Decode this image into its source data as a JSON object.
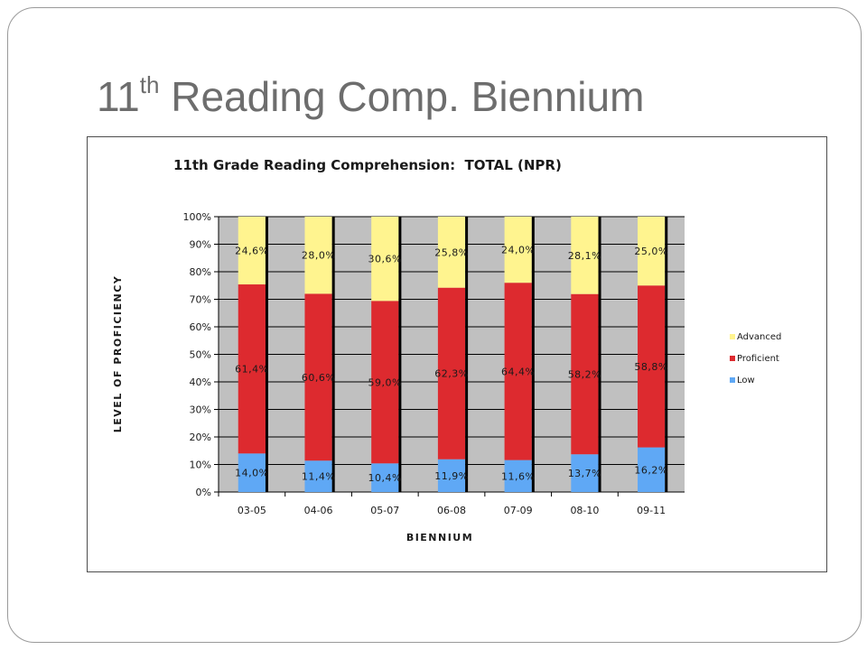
{
  "slide": {
    "title_main": "11",
    "title_sup": "th",
    "title_rest": " Reading Comp. Biennium"
  },
  "colors": {
    "plot_bg": "#c0c0c0",
    "Low": "#5fa8f5",
    "Proficient": "#dd2a2f",
    "Advanced": "#fff48f"
  },
  "chart_data": {
    "type": "bar",
    "stacked": true,
    "title": "11th Grade Reading Comprehension:  TOTAL (NPR)",
    "xlabel": "BIENNIUM",
    "ylabel": "LEVEL OF PROFICIENCY",
    "ylim": [
      0,
      100
    ],
    "y_ticks": [
      "0%",
      "10%",
      "20%",
      "30%",
      "40%",
      "50%",
      "60%",
      "70%",
      "80%",
      "90%",
      "100%"
    ],
    "grid": true,
    "legend_position": "right",
    "categories": [
      "03-05",
      "04-06",
      "05-07",
      "06-08",
      "07-09",
      "08-10",
      "09-11"
    ],
    "series": [
      {
        "name": "Low",
        "values": [
          14.0,
          11.4,
          10.4,
          11.9,
          11.6,
          13.7,
          16.2
        ],
        "labels": [
          "14,0%",
          "11,4%",
          "10,4%",
          "11,9%",
          "11,6%",
          "13,7%",
          "16,2%"
        ]
      },
      {
        "name": "Proficient",
        "values": [
          61.4,
          60.6,
          59.0,
          62.3,
          64.4,
          58.2,
          58.8
        ],
        "labels": [
          "61,4%",
          "60,6%",
          "59,0%",
          "62,3%",
          "64,4%",
          "58,2%",
          "58,8%"
        ]
      },
      {
        "name": "Advanced",
        "values": [
          24.6,
          28.0,
          30.6,
          25.8,
          24.0,
          28.1,
          25.0
        ],
        "labels": [
          "24,6%",
          "28,0%",
          "30,6%",
          "25,8%",
          "24,0%",
          "28,1%",
          "25,0%"
        ]
      }
    ],
    "legend_order": [
      "Advanced",
      "Proficient",
      "Low"
    ]
  }
}
